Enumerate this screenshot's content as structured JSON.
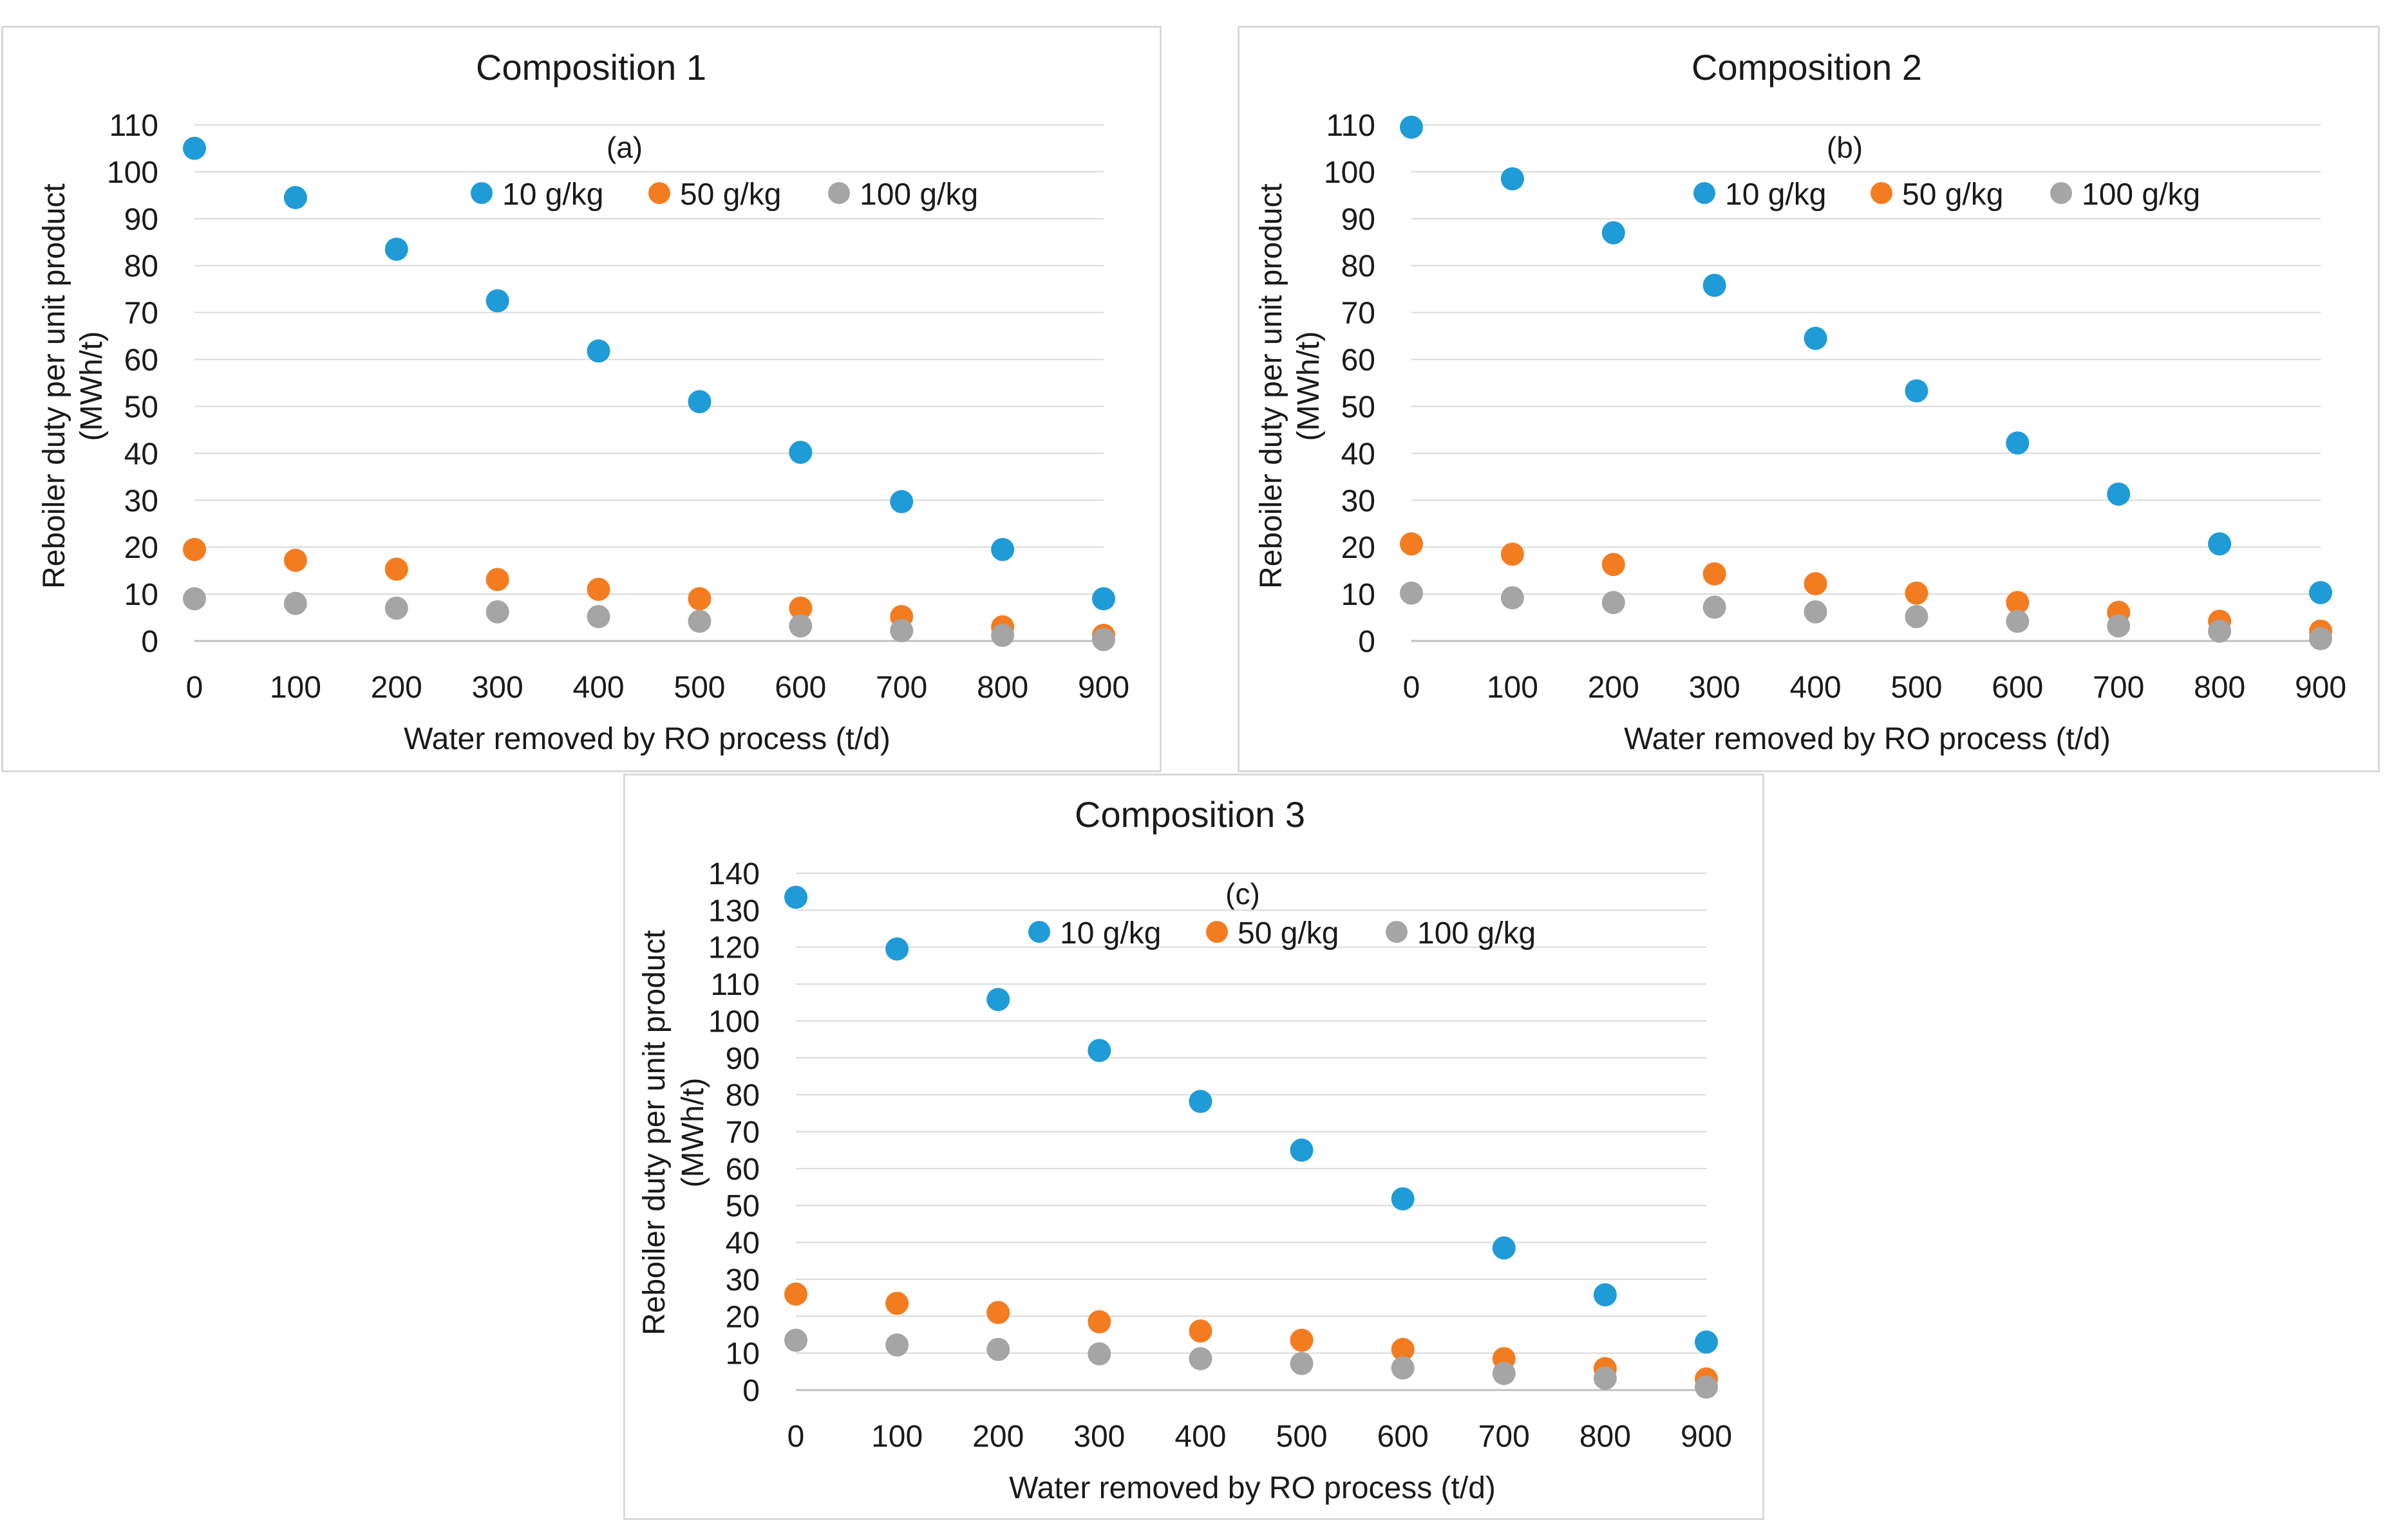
{
  "charts": [
    {
      "type": "scatter",
      "title": "Composition 1",
      "panel_label": "(a)",
      "xlabel": "Water removed by RO process (t/d)",
      "ylabel_line1": "Reboiler duty per unit product",
      "ylabel_line2": "(MWh/t)",
      "x": [
        0,
        100,
        200,
        300,
        400,
        500,
        600,
        700,
        800,
        900
      ],
      "xlim": [
        0,
        900
      ],
      "xticks": [
        "0",
        "100",
        "200",
        "300",
        "400",
        "500",
        "600",
        "700",
        "800",
        "900"
      ],
      "ylim": [
        0,
        110
      ],
      "yticks": [
        "0",
        "10",
        "20",
        "30",
        "40",
        "50",
        "60",
        "70",
        "80",
        "90",
        "100",
        "110"
      ],
      "grid": true,
      "legend": "top-center",
      "series": [
        {
          "name": "10 g/kg",
          "color": "#1f9bd7",
          "values": [
            105,
            94.5,
            83.5,
            72.5,
            61.8,
            51,
            40.2,
            29.7,
            19.5,
            9
          ]
        },
        {
          "name": "50 g/kg",
          "color": "#f47c20",
          "values": [
            19.5,
            17.2,
            15.3,
            13.1,
            11,
            9,
            7,
            5.2,
            3,
            1.2
          ]
        },
        {
          "name": "100 g/kg",
          "color": "#a5a5a5",
          "values": [
            9,
            8,
            7,
            6.2,
            5.2,
            4.2,
            3.2,
            2.2,
            1.2,
            0.3
          ]
        }
      ]
    },
    {
      "type": "scatter",
      "title": "Composition 2",
      "panel_label": "(b)",
      "xlabel": "Water removed by RO process (t/d)",
      "ylabel_line1": "Reboiler duty per unit product",
      "ylabel_line2": "(MWh/t)",
      "x": [
        0,
        100,
        200,
        300,
        400,
        500,
        600,
        700,
        800,
        900
      ],
      "xlim": [
        0,
        900
      ],
      "xticks": [
        "0",
        "100",
        "200",
        "300",
        "400",
        "500",
        "600",
        "700",
        "800",
        "900"
      ],
      "ylim": [
        0,
        110
      ],
      "yticks": [
        "0",
        "10",
        "20",
        "30",
        "40",
        "50",
        "60",
        "70",
        "80",
        "90",
        "100",
        "110"
      ],
      "grid": true,
      "legend": "top-center",
      "series": [
        {
          "name": "10 g/kg",
          "color": "#1f9bd7",
          "values": [
            109.5,
            98.5,
            87,
            75.8,
            64.5,
            53.3,
            42.2,
            31.3,
            20.7,
            10.3
          ]
        },
        {
          "name": "50 g/kg",
          "color": "#f47c20",
          "values": [
            20.7,
            18.5,
            16.3,
            14.3,
            12.2,
            10.2,
            8.2,
            6.1,
            4.2,
            2.1
          ]
        },
        {
          "name": "100 g/kg",
          "color": "#a5a5a5",
          "values": [
            10.2,
            9.2,
            8.2,
            7.2,
            6.2,
            5.2,
            4.2,
            3.2,
            2.1,
            0.5
          ]
        }
      ]
    },
    {
      "type": "scatter",
      "title": "Composition 3",
      "panel_label": "(c)",
      "xlabel": "Water removed by RO process (t/d)",
      "ylabel_line1": "Reboiler duty per unit product",
      "ylabel_line2": "(MWh/t)",
      "x": [
        0,
        100,
        200,
        300,
        400,
        500,
        600,
        700,
        800,
        900
      ],
      "xlim": [
        0,
        900
      ],
      "xticks": [
        "0",
        "100",
        "200",
        "300",
        "400",
        "500",
        "600",
        "700",
        "800",
        "900"
      ],
      "ylim": [
        0,
        140
      ],
      "yticks": [
        "0",
        "10",
        "20",
        "30",
        "40",
        "50",
        "60",
        "70",
        "80",
        "90",
        "100",
        "110",
        "120",
        "130",
        "140"
      ],
      "grid": true,
      "legend": "top-center",
      "series": [
        {
          "name": "10 g/kg",
          "color": "#1f9bd7",
          "values": [
            133.5,
            119.5,
            105.8,
            92,
            78.2,
            65,
            51.8,
            38.5,
            25.8,
            13
          ]
        },
        {
          "name": "50 g/kg",
          "color": "#f47c20",
          "values": [
            26,
            23.5,
            21,
            18.5,
            16,
            13.5,
            11,
            8.5,
            5.8,
            3
          ]
        },
        {
          "name": "100 g/kg",
          "color": "#a5a5a5",
          "values": [
            13.5,
            12.2,
            11,
            9.8,
            8.5,
            7.2,
            6,
            4.5,
            3.2,
            0.8
          ]
        }
      ]
    }
  ]
}
